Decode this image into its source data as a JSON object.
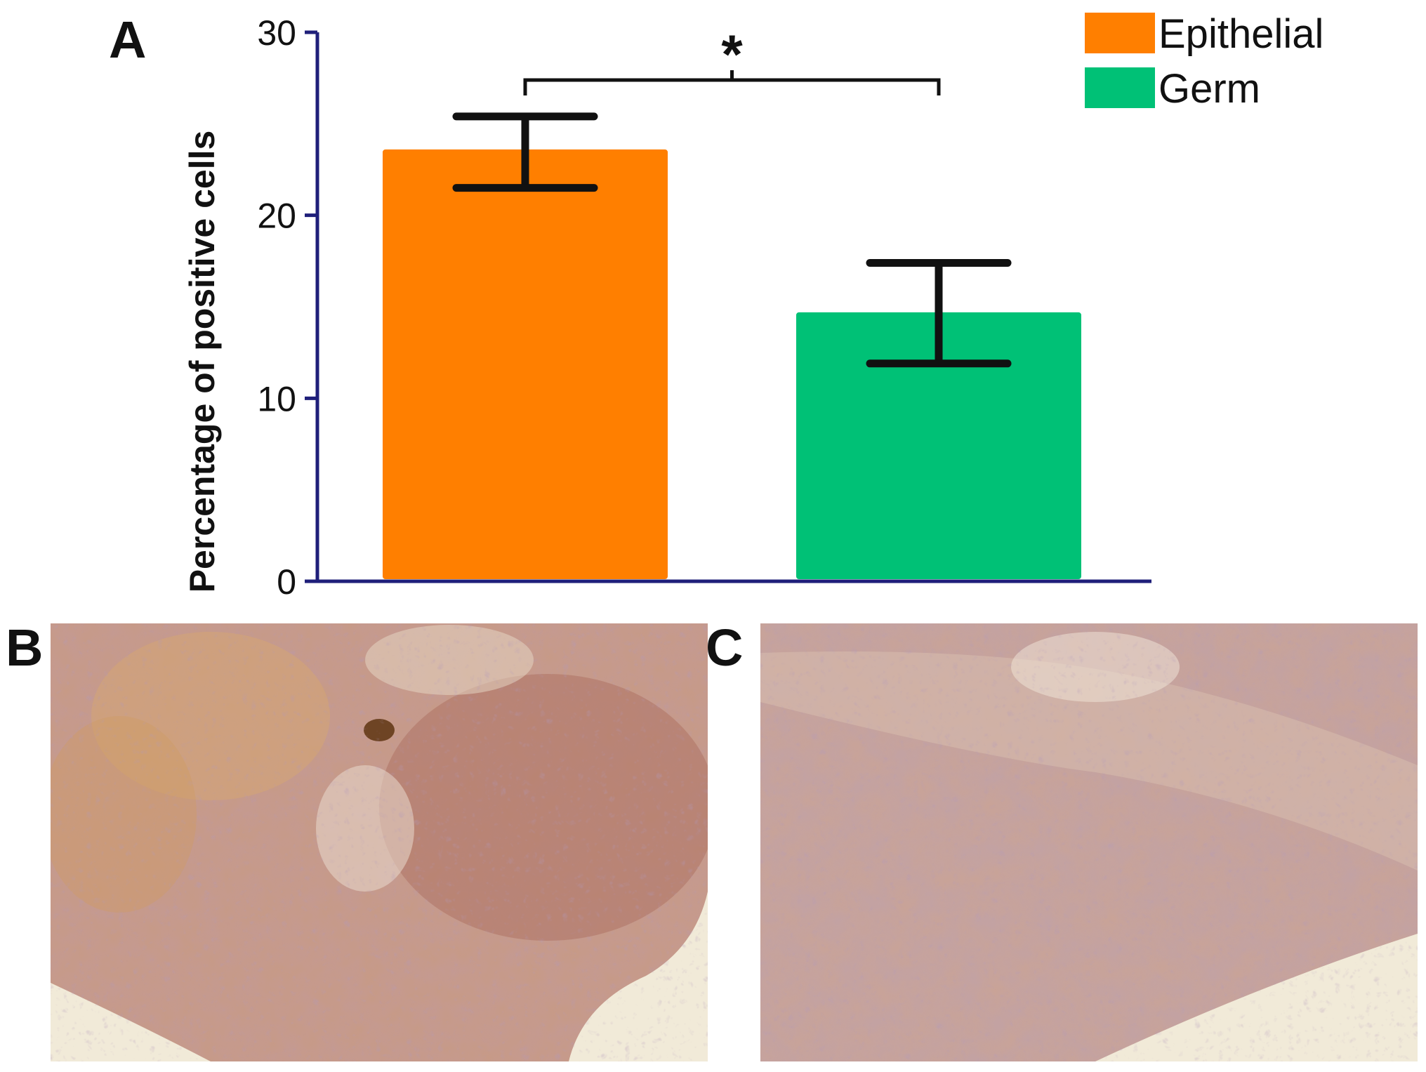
{
  "figure": {
    "panels": {
      "a": "A",
      "b": "B",
      "c": "C"
    }
  },
  "chart_data": {
    "type": "bar",
    "categories": [
      "Epithelial",
      "Germ"
    ],
    "values": [
      23.6,
      14.7
    ],
    "error_low": [
      21.5,
      11.9
    ],
    "error_high": [
      25.4,
      17.4
    ],
    "colors": [
      "#FF7F00",
      "#00C176"
    ],
    "title": "",
    "xlabel": "",
    "ylabel": "Percentage of positive cells",
    "ylim": [
      0,
      30
    ],
    "yticks": [
      0,
      10,
      20,
      30
    ],
    "axis_color": "#1F1F7A",
    "grid": false,
    "legend": {
      "position": "top-right",
      "entries": [
        "Epithelial",
        "Germ"
      ]
    },
    "annotations": [
      {
        "text": "*",
        "between": [
          "Epithelial",
          "Germ"
        ]
      }
    ]
  },
  "micrographs": [
    {
      "label": "B",
      "description_icon": "histology-image"
    },
    {
      "label": "C",
      "description_icon": "histology-image"
    }
  ]
}
